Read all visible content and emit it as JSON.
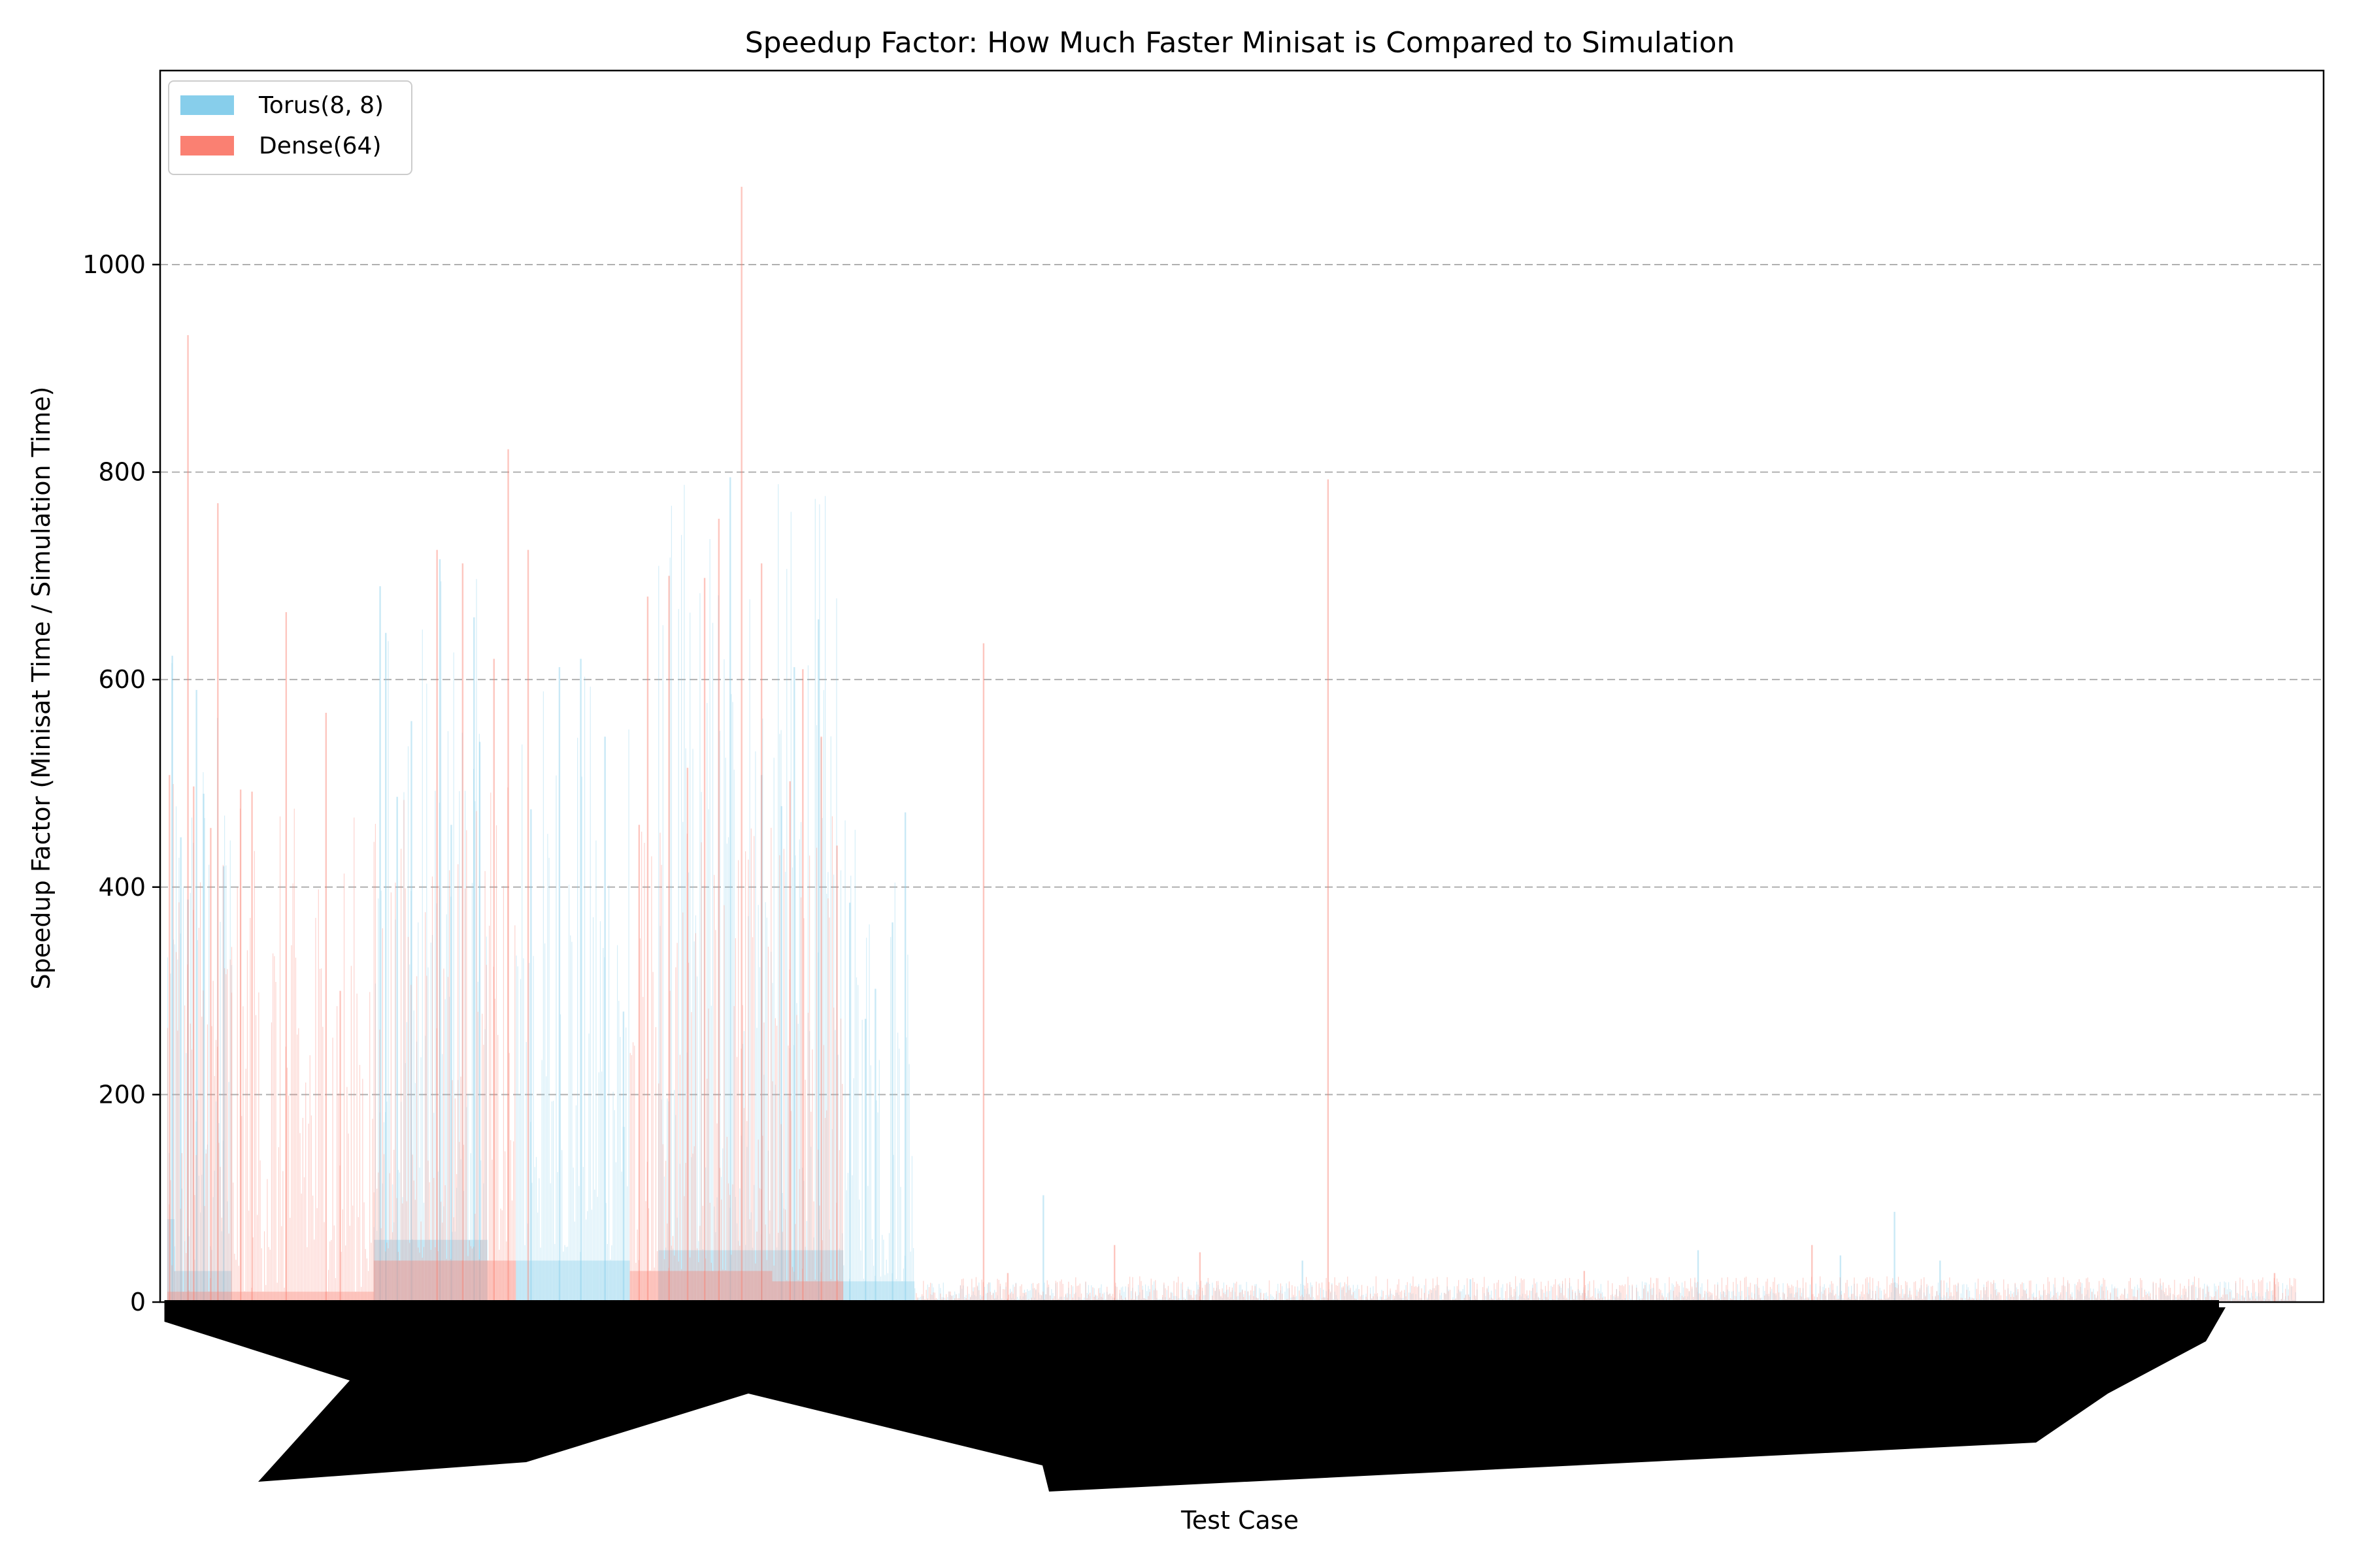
{
  "chart_data": {
    "type": "bar",
    "title": "Speedup Factor: How Much Faster Minisat is Compared to Simulation",
    "xlabel": "Test Case",
    "ylabel": "Speedup Factor (Minisat Time / Simulation Time)",
    "ylim": [
      0,
      1187
    ],
    "yticks": [
      0,
      200,
      400,
      600,
      800,
      1000
    ],
    "grid": "y, dashed",
    "legend_position": "top-left",
    "x_tick_labels_note": "hundreds of rotated, overlapping test-case names rendered as an illegible black band",
    "colors": {
      "torus": "#87CEEB",
      "dense": "#FA8072"
    },
    "series": [
      {
        "name": "Torus(8, 8)",
        "color": "#87CEEB",
        "segments": [
          {
            "x0": 0.5,
            "x1": 1.0,
            "lo": 80,
            "hi": 620,
            "peaks": [
              [
                0.8,
                623
              ]
            ]
          },
          {
            "x0": 1.0,
            "x1": 5.0,
            "lo": 30,
            "hi": 590,
            "peaks": [
              [
                1.4,
                448
              ],
              [
                1.9,
                388
              ],
              [
                2.5,
                590
              ],
              [
                3.0,
                490
              ],
              [
                4.4,
                420
              ]
            ]
          },
          {
            "x0": 15.0,
            "x1": 23.0,
            "lo": 60,
            "hi": 700,
            "peaks": [
              [
                15.4,
                690
              ],
              [
                15.8,
                645
              ],
              [
                16.6,
                487
              ],
              [
                17.6,
                560
              ],
              [
                19.6,
                716
              ],
              [
                20.4,
                460
              ],
              [
                22.0,
                660
              ],
              [
                22.4,
                540
              ]
            ]
          },
          {
            "x0": 25.0,
            "x1": 33.0,
            "lo": 40,
            "hi": 620,
            "peaks": [
              [
                26.0,
                475
              ],
              [
                28.0,
                612
              ],
              [
                29.5,
                620
              ],
              [
                31.2,
                545
              ],
              [
                32.5,
                280
              ]
            ]
          },
          {
            "x0": 35.0,
            "x1": 48.0,
            "lo": 50,
            "hi": 800,
            "peaks": [
              [
                40.0,
                795
              ],
              [
                42.2,
                508
              ],
              [
                43.6,
                478
              ],
              [
                44.5,
                612
              ],
              [
                46.2,
                658
              ]
            ]
          },
          {
            "x0": 48.0,
            "x1": 53.0,
            "lo": 20,
            "hi": 470,
            "peaks": [
              [
                48.4,
                385
              ],
              [
                49.5,
                273
              ],
              [
                50.2,
                302
              ],
              [
                51.4,
                366
              ],
              [
                52.3,
                472
              ]
            ]
          },
          {
            "x0": 53.0,
            "x1": 150.0,
            "lo": 2,
            "hi": 20,
            "peaks": [
              [
                62.0,
                103
              ],
              [
                80.2,
                40
              ],
              [
                92.0,
                22
              ],
              [
                108.0,
                50
              ],
              [
                118.0,
                45
              ],
              [
                121.8,
                87
              ],
              [
                125.0,
                40
              ]
            ]
          }
        ]
      },
      {
        "name": "Dense(64)",
        "color": "#FA8072",
        "segments": [
          {
            "x0": 0.5,
            "x1": 5.0,
            "lo": 10,
            "hi": 500,
            "peaks": [
              [
                0.6,
                508
              ],
              [
                1.9,
                932
              ],
              [
                2.3,
                497
              ],
              [
                4.0,
                770
              ],
              [
                3.5,
                457
              ]
            ]
          },
          {
            "x0": 5.0,
            "x1": 15.0,
            "lo": 10,
            "hi": 480,
            "peaks": [
              [
                5.6,
                494
              ],
              [
                6.4,
                492
              ],
              [
                8.8,
                665
              ],
              [
                11.6,
                568
              ],
              [
                12.6,
                300
              ]
            ]
          },
          {
            "x0": 15.0,
            "x1": 25.0,
            "lo": 40,
            "hi": 500,
            "peaks": [
              [
                19.4,
                725
              ],
              [
                21.2,
                712
              ],
              [
                24.4,
                822
              ],
              [
                25.8,
                725
              ],
              [
                23.4,
                620
              ]
            ]
          },
          {
            "x0": 33.0,
            "x1": 43.0,
            "lo": 30,
            "hi": 480,
            "peaks": [
              [
                33.6,
                460
              ],
              [
                34.2,
                680
              ],
              [
                35.7,
                700
              ],
              [
                38.2,
                698
              ],
              [
                37.0,
                515
              ],
              [
                39.2,
                755
              ],
              [
                40.8,
                1075
              ],
              [
                42.2,
                712
              ]
            ]
          },
          {
            "x0": 43.0,
            "x1": 48.0,
            "lo": 20,
            "hi": 480,
            "peaks": [
              [
                44.2,
                502
              ],
              [
                45.1,
                610
              ],
              [
                46.4,
                545
              ],
              [
                47.5,
                440
              ]
            ]
          },
          {
            "x0": 53.0,
            "x1": 150.0,
            "lo": 1,
            "hi": 25,
            "peaks": [
              [
                57.8,
                635
              ],
              [
                82.0,
                793
              ],
              [
                59.5,
                28
              ],
              [
                67.0,
                55
              ],
              [
                73.0,
                48
              ],
              [
                100.0,
                30
              ],
              [
                116.0,
                55
              ],
              [
                148.5,
                28
              ]
            ]
          }
        ]
      }
    ]
  }
}
